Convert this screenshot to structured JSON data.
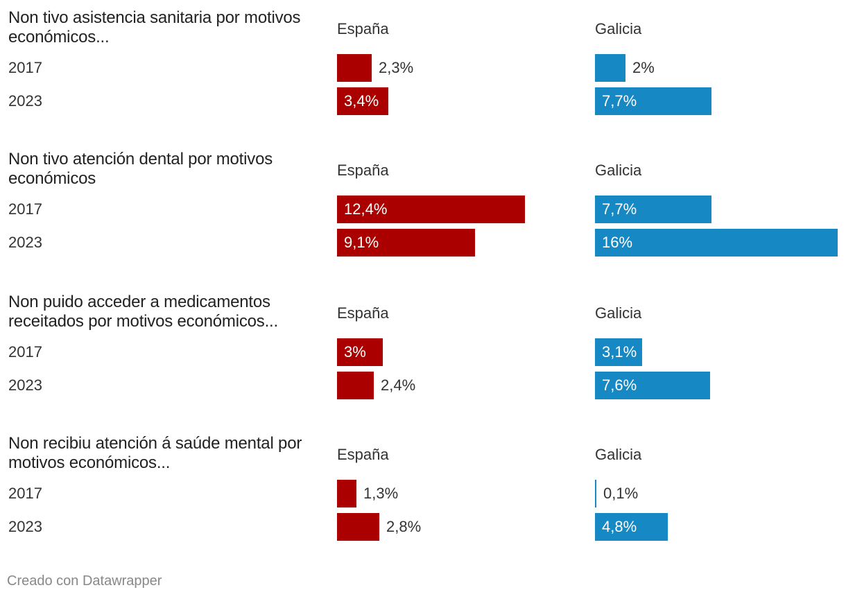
{
  "colors": {
    "spain": "#aa0000",
    "galicia": "#1688c3"
  },
  "footer": "Creado con Datawrapper",
  "chart_data": {
    "type": "bar",
    "orientation": "horizontal",
    "unit": "%",
    "decimal_separator": ",",
    "panels": [
      "España",
      "Galicia"
    ],
    "xlim": [
      0,
      16
    ],
    "groups": [
      {
        "title": "Non tivo asistencia sanitaria por motivos económicos...",
        "rows": [
          {
            "year": "2017",
            "values": [
              2.3,
              2.0
            ],
            "labels": [
              "2,3%",
              "2%"
            ]
          },
          {
            "year": "2023",
            "values": [
              3.4,
              7.7
            ],
            "labels": [
              "3,4%",
              "7,7%"
            ]
          }
        ]
      },
      {
        "title": "Non tivo atención dental por motivos económicos",
        "rows": [
          {
            "year": "2017",
            "values": [
              12.4,
              7.7
            ],
            "labels": [
              "12,4%",
              "7,7%"
            ]
          },
          {
            "year": "2023",
            "values": [
              9.1,
              16.0
            ],
            "labels": [
              "9,1%",
              "16%"
            ]
          }
        ]
      },
      {
        "title": "Non puido acceder a medicamentos receitados por motivos económicos...",
        "rows": [
          {
            "year": "2017",
            "values": [
              3.0,
              3.1
            ],
            "labels": [
              "3%",
              "3,1%"
            ]
          },
          {
            "year": "2023",
            "values": [
              2.4,
              7.6
            ],
            "labels": [
              "2,4%",
              "7,6%"
            ]
          }
        ]
      },
      {
        "title": "Non recibiu atención á saúde mental por motivos económicos...",
        "rows": [
          {
            "year": "2017",
            "values": [
              1.3,
              0.1
            ],
            "labels": [
              "1,3%",
              "0,1%"
            ]
          },
          {
            "year": "2023",
            "values": [
              2.8,
              4.8
            ],
            "labels": [
              "2,8%",
              "4,8%"
            ]
          }
        ]
      }
    ]
  }
}
